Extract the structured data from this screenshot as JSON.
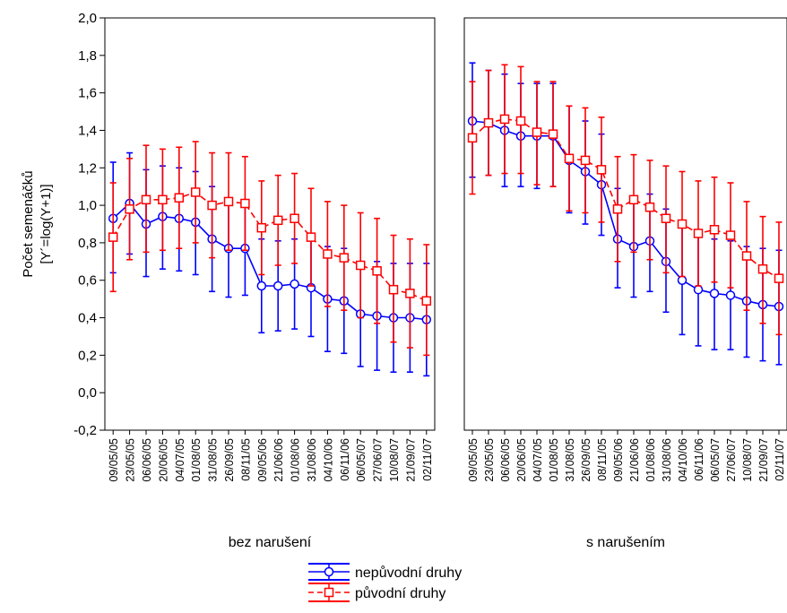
{
  "chart_data": {
    "type": "line",
    "ylabel_line1": "Počet semenáčků",
    "ylabel_line2": "[Y´=log(Y+1)]",
    "ylim": [
      -0.2,
      2.0
    ],
    "yticks": [
      "-0,2",
      "0,0",
      "0,2",
      "0,4",
      "0,6",
      "0,8",
      "1,0",
      "1,2",
      "1,4",
      "1,6",
      "1,8",
      "2,0"
    ],
    "grid": false,
    "legend_position": "bottom-center",
    "categories": [
      "09/05/05",
      "23/05/05",
      "06/06/05",
      "20/06/05",
      "04/07/05",
      "01/08/05",
      "31/08/05",
      "26/09/05",
      "08/11/05",
      "09/05/06",
      "21/06/06",
      "01/08/06",
      "31/08/06",
      "04/10/06",
      "06/11/06",
      "06/05/07",
      "27/06/07",
      "10/08/07",
      "21/09/07",
      "02/11/07"
    ],
    "legend": {
      "series1": "nepůvodní druhy",
      "series2": "původní druhy"
    },
    "colors": {
      "series1": "#0000ff",
      "series2": "#ff0000"
    },
    "panels": [
      {
        "xlabel": "bez narušení",
        "series": [
          {
            "name": "nepůvodní druhy",
            "marker": "circle",
            "line": "solid",
            "values": [
              0.93,
              1.01,
              0.9,
              0.94,
              0.93,
              0.91,
              0.82,
              0.77,
              0.77,
              0.57,
              0.57,
              0.58,
              0.56,
              0.5,
              0.49,
              0.42,
              0.41,
              0.4,
              0.4,
              0.39
            ],
            "lower": [
              0.64,
              0.74,
              0.62,
              0.66,
              0.65,
              0.63,
              0.54,
              0.51,
              0.52,
              0.32,
              0.33,
              0.34,
              0.3,
              0.22,
              0.21,
              0.14,
              0.12,
              0.11,
              0.11,
              0.09
            ],
            "upper": [
              1.23,
              1.28,
              1.19,
              1.21,
              1.2,
              1.18,
              1.1,
              1.03,
              1.02,
              0.82,
              0.81,
              0.82,
              0.82,
              0.78,
              0.77,
              0.7,
              0.7,
              0.69,
              0.69,
              0.69
            ]
          },
          {
            "name": "původní druhy",
            "marker": "square",
            "line": "dashed",
            "values": [
              0.83,
              0.98,
              1.03,
              1.03,
              1.04,
              1.07,
              1.0,
              1.02,
              1.01,
              0.88,
              0.92,
              0.93,
              0.83,
              0.74,
              0.72,
              0.68,
              0.65,
              0.55,
              0.53,
              0.49
            ],
            "lower": [
              0.54,
              0.71,
              0.75,
              0.76,
              0.77,
              0.8,
              0.72,
              0.76,
              0.76,
              0.63,
              0.68,
              0.69,
              0.57,
              0.46,
              0.44,
              0.4,
              0.37,
              0.27,
              0.24,
              0.2
            ],
            "upper": [
              1.12,
              1.25,
              1.32,
              1.3,
              1.31,
              1.34,
              1.28,
              1.28,
              1.26,
              1.13,
              1.16,
              1.17,
              1.09,
              1.02,
              1.0,
              0.96,
              0.93,
              0.84,
              0.82,
              0.79
            ]
          }
        ]
      },
      {
        "xlabel": "s narušením",
        "series": [
          {
            "name": "nepůvodní druhy",
            "marker": "circle",
            "line": "solid",
            "values": [
              1.45,
              1.44,
              1.4,
              1.37,
              1.37,
              1.37,
              1.24,
              1.18,
              1.11,
              0.82,
              0.78,
              0.81,
              0.7,
              0.6,
              0.55,
              0.53,
              0.52,
              0.49,
              0.47,
              0.46
            ],
            "lower": [
              1.15,
              1.16,
              1.1,
              1.1,
              1.09,
              1.1,
              0.96,
              0.9,
              0.84,
              0.56,
              0.51,
              0.54,
              0.43,
              0.31,
              0.25,
              0.23,
              0.23,
              0.19,
              0.17,
              0.15
            ],
            "upper": [
              1.76,
              1.72,
              1.7,
              1.65,
              1.65,
              1.65,
              1.53,
              1.45,
              1.38,
              1.09,
              1.05,
              1.06,
              0.98,
              0.88,
              0.84,
              0.82,
              0.81,
              0.78,
              0.77,
              0.76
            ]
          },
          {
            "name": "původní druhy",
            "marker": "square",
            "line": "dashed",
            "values": [
              1.36,
              1.44,
              1.46,
              1.45,
              1.39,
              1.38,
              1.25,
              1.24,
              1.19,
              0.98,
              1.03,
              0.99,
              0.93,
              0.9,
              0.85,
              0.87,
              0.84,
              0.73,
              0.66,
              0.61
            ],
            "lower": [
              1.06,
              1.16,
              1.17,
              1.17,
              1.11,
              1.1,
              0.97,
              0.96,
              0.91,
              0.7,
              0.75,
              0.71,
              0.64,
              0.62,
              0.57,
              0.59,
              0.56,
              0.44,
              0.37,
              0.31
            ],
            "upper": [
              1.66,
              1.72,
              1.75,
              1.74,
              1.66,
              1.66,
              1.53,
              1.52,
              1.47,
              1.26,
              1.27,
              1.24,
              1.21,
              1.18,
              1.13,
              1.15,
              1.12,
              1.02,
              0.94,
              0.91
            ]
          }
        ]
      }
    ]
  }
}
